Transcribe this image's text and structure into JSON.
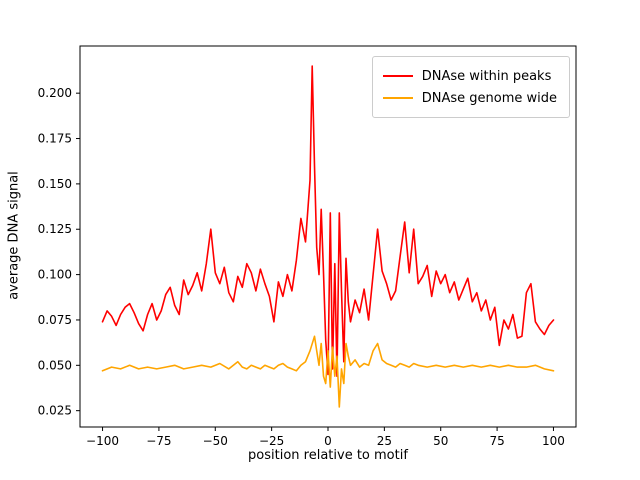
{
  "chart_data": {
    "type": "line",
    "title": "",
    "xlabel": "position relative to motif",
    "ylabel": "average DNA signal",
    "xlim": [
      -110,
      110
    ],
    "ylim": [
      0.016,
      0.226
    ],
    "grid": false,
    "legend_position": "upper right",
    "xticks": [
      -100,
      -75,
      -50,
      -25,
      0,
      25,
      50,
      75,
      100
    ],
    "xtick_labels": [
      "−100",
      "−75",
      "−50",
      "−25",
      "0",
      "25",
      "50",
      "75",
      "100"
    ],
    "yticks": [
      0.025,
      0.05,
      0.075,
      0.1,
      0.125,
      0.15,
      0.175,
      0.2
    ],
    "ytick_labels": [
      "0.025",
      "0.050",
      "0.075",
      "0.100",
      "0.125",
      "0.150",
      "0.175",
      "0.200"
    ],
    "series": [
      {
        "name": "DNAse within peaks",
        "color": "#ff0000",
        "points": [
          [
            -100,
            0.074
          ],
          [
            -98,
            0.08
          ],
          [
            -96,
            0.077
          ],
          [
            -94,
            0.072
          ],
          [
            -92,
            0.078
          ],
          [
            -90,
            0.082
          ],
          [
            -88,
            0.084
          ],
          [
            -86,
            0.079
          ],
          [
            -84,
            0.073
          ],
          [
            -82,
            0.069
          ],
          [
            -80,
            0.078
          ],
          [
            -78,
            0.084
          ],
          [
            -76,
            0.075
          ],
          [
            -74,
            0.08
          ],
          [
            -72,
            0.089
          ],
          [
            -70,
            0.093
          ],
          [
            -68,
            0.083
          ],
          [
            -66,
            0.078
          ],
          [
            -64,
            0.097
          ],
          [
            -62,
            0.089
          ],
          [
            -60,
            0.094
          ],
          [
            -58,
            0.101
          ],
          [
            -56,
            0.091
          ],
          [
            -54,
            0.106
          ],
          [
            -52,
            0.125
          ],
          [
            -50,
            0.101
          ],
          [
            -48,
            0.095
          ],
          [
            -46,
            0.104
          ],
          [
            -44,
            0.09
          ],
          [
            -42,
            0.085
          ],
          [
            -40,
            0.099
          ],
          [
            -38,
            0.093
          ],
          [
            -36,
            0.106
          ],
          [
            -34,
            0.101
          ],
          [
            -32,
            0.091
          ],
          [
            -30,
            0.103
          ],
          [
            -28,
            0.095
          ],
          [
            -26,
            0.088
          ],
          [
            -24,
            0.074
          ],
          [
            -22,
            0.096
          ],
          [
            -20,
            0.088
          ],
          [
            -18,
            0.1
          ],
          [
            -16,
            0.091
          ],
          [
            -14,
            0.108
          ],
          [
            -12,
            0.131
          ],
          [
            -10,
            0.118
          ],
          [
            -8,
            0.152
          ],
          [
            -7,
            0.215
          ],
          [
            -6,
            0.16
          ],
          [
            -5,
            0.115
          ],
          [
            -4,
            0.1
          ],
          [
            -3,
            0.136
          ],
          [
            -2,
            0.101
          ],
          [
            -1,
            0.064
          ],
          [
            0,
            0.045
          ],
          [
            1,
            0.134
          ],
          [
            2,
            0.048
          ],
          [
            3,
            0.106
          ],
          [
            4,
            0.044
          ],
          [
            5,
            0.134
          ],
          [
            6,
            0.091
          ],
          [
            7,
            0.052
          ],
          [
            8,
            0.109
          ],
          [
            9,
            0.085
          ],
          [
            10,
            0.074
          ],
          [
            12,
            0.086
          ],
          [
            14,
            0.079
          ],
          [
            16,
            0.092
          ],
          [
            18,
            0.075
          ],
          [
            20,
            0.1
          ],
          [
            22,
            0.125
          ],
          [
            24,
            0.102
          ],
          [
            26,
            0.095
          ],
          [
            28,
            0.086
          ],
          [
            30,
            0.091
          ],
          [
            32,
            0.11
          ],
          [
            34,
            0.129
          ],
          [
            36,
            0.101
          ],
          [
            38,
            0.125
          ],
          [
            40,
            0.095
          ],
          [
            42,
            0.099
          ],
          [
            44,
            0.105
          ],
          [
            46,
            0.088
          ],
          [
            48,
            0.102
          ],
          [
            50,
            0.095
          ],
          [
            52,
            0.1
          ],
          [
            54,
            0.09
          ],
          [
            56,
            0.096
          ],
          [
            58,
            0.086
          ],
          [
            60,
            0.092
          ],
          [
            62,
            0.098
          ],
          [
            64,
            0.085
          ],
          [
            66,
            0.09
          ],
          [
            68,
            0.08
          ],
          [
            70,
            0.086
          ],
          [
            72,
            0.075
          ],
          [
            74,
            0.082
          ],
          [
            76,
            0.061
          ],
          [
            78,
            0.075
          ],
          [
            80,
            0.07
          ],
          [
            82,
            0.078
          ],
          [
            84,
            0.065
          ],
          [
            86,
            0.066
          ],
          [
            88,
            0.09
          ],
          [
            90,
            0.095
          ],
          [
            92,
            0.074
          ],
          [
            94,
            0.07
          ],
          [
            96,
            0.067
          ],
          [
            98,
            0.072
          ],
          [
            100,
            0.075
          ]
        ]
      },
      {
        "name": "DNAse genome wide",
        "color": "#ffa500",
        "points": [
          [
            -100,
            0.047
          ],
          [
            -96,
            0.049
          ],
          [
            -92,
            0.048
          ],
          [
            -88,
            0.05
          ],
          [
            -84,
            0.048
          ],
          [
            -80,
            0.049
          ],
          [
            -76,
            0.048
          ],
          [
            -72,
            0.049
          ],
          [
            -68,
            0.05
          ],
          [
            -64,
            0.048
          ],
          [
            -60,
            0.049
          ],
          [
            -56,
            0.05
          ],
          [
            -52,
            0.049
          ],
          [
            -48,
            0.051
          ],
          [
            -44,
            0.048
          ],
          [
            -40,
            0.052
          ],
          [
            -38,
            0.049
          ],
          [
            -36,
            0.048
          ],
          [
            -34,
            0.05
          ],
          [
            -32,
            0.049
          ],
          [
            -30,
            0.048
          ],
          [
            -28,
            0.05
          ],
          [
            -26,
            0.049
          ],
          [
            -24,
            0.048
          ],
          [
            -22,
            0.05
          ],
          [
            -20,
            0.051
          ],
          [
            -18,
            0.049
          ],
          [
            -16,
            0.048
          ],
          [
            -14,
            0.047
          ],
          [
            -12,
            0.05
          ],
          [
            -10,
            0.052
          ],
          [
            -8,
            0.058
          ],
          [
            -6,
            0.066
          ],
          [
            -5,
            0.058
          ],
          [
            -4,
            0.05
          ],
          [
            -3,
            0.062
          ],
          [
            -2,
            0.044
          ],
          [
            -1,
            0.04
          ],
          [
            0,
            0.058
          ],
          [
            1,
            0.038
          ],
          [
            2,
            0.06
          ],
          [
            3,
            0.044
          ],
          [
            4,
            0.055
          ],
          [
            5,
            0.027
          ],
          [
            6,
            0.048
          ],
          [
            7,
            0.04
          ],
          [
            8,
            0.062
          ],
          [
            9,
            0.055
          ],
          [
            10,
            0.05
          ],
          [
            12,
            0.053
          ],
          [
            14,
            0.049
          ],
          [
            16,
            0.051
          ],
          [
            18,
            0.05
          ],
          [
            20,
            0.058
          ],
          [
            22,
            0.062
          ],
          [
            24,
            0.053
          ],
          [
            26,
            0.051
          ],
          [
            28,
            0.05
          ],
          [
            30,
            0.049
          ],
          [
            32,
            0.051
          ],
          [
            34,
            0.05
          ],
          [
            36,
            0.049
          ],
          [
            38,
            0.051
          ],
          [
            40,
            0.05
          ],
          [
            44,
            0.049
          ],
          [
            48,
            0.05
          ],
          [
            52,
            0.049
          ],
          [
            56,
            0.05
          ],
          [
            60,
            0.049
          ],
          [
            64,
            0.05
          ],
          [
            68,
            0.049
          ],
          [
            72,
            0.05
          ],
          [
            76,
            0.049
          ],
          [
            80,
            0.05
          ],
          [
            84,
            0.049
          ],
          [
            88,
            0.049
          ],
          [
            92,
            0.05
          ],
          [
            96,
            0.048
          ],
          [
            100,
            0.047
          ]
        ]
      }
    ]
  }
}
